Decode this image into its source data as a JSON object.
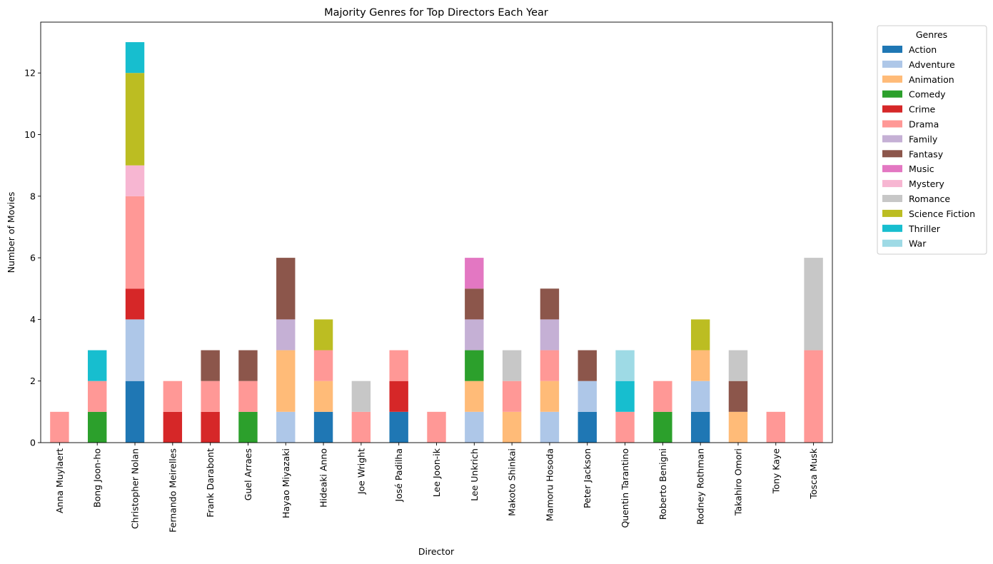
{
  "chart_data": {
    "type": "bar",
    "stacked": true,
    "title": "Majority Genres for Top Directors Each Year",
    "xlabel": "Director",
    "ylabel": "Number of Movies",
    "ylim": [
      0,
      13.65
    ],
    "yticks": [
      0,
      2,
      4,
      6,
      8,
      10,
      12
    ],
    "grid": false,
    "legend": {
      "title": "Genres",
      "placement": "outside-top-right"
    },
    "categories": [
      "Anna Muylaert",
      "Bong Joon-ho",
      "Christopher Nolan",
      "Fernando Meirelles",
      "Frank Darabont",
      "Guel Arraes",
      "Hayao Miyazaki",
      "Hideaki Anno",
      "Joe Wright",
      "José Padilha",
      "Lee Joon-ik",
      "Lee Unkrich",
      "Makoto Shinkai",
      "Mamoru Hosoda",
      "Peter Jackson",
      "Quentin Tarantino",
      "Roberto Benigni",
      "Rodney Rothman",
      "Takahiro Omori",
      "Tony Kaye",
      "Tosca Musk"
    ],
    "series": [
      {
        "name": "Action",
        "color": "#1f77b4",
        "values": [
          0,
          0,
          2,
          0,
          0,
          0,
          0,
          1,
          0,
          1,
          0,
          0,
          0,
          0,
          1,
          0,
          0,
          1,
          0,
          0,
          0
        ]
      },
      {
        "name": "Adventure",
        "color": "#aec7e8",
        "values": [
          0,
          0,
          2,
          0,
          0,
          0,
          1,
          0,
          0,
          0,
          0,
          1,
          0,
          1,
          1,
          0,
          0,
          1,
          0,
          0,
          0
        ]
      },
      {
        "name": "Animation",
        "color": "#ffbb78",
        "values": [
          0,
          0,
          0,
          0,
          0,
          0,
          2,
          1,
          0,
          0,
          0,
          1,
          1,
          1,
          0,
          0,
          0,
          1,
          1,
          0,
          0
        ]
      },
      {
        "name": "Comedy",
        "color": "#2ca02c",
        "values": [
          0,
          1,
          0,
          0,
          0,
          1,
          0,
          0,
          0,
          0,
          0,
          1,
          0,
          0,
          0,
          0,
          1,
          0,
          0,
          0,
          0
        ]
      },
      {
        "name": "Crime",
        "color": "#d62728",
        "values": [
          0,
          0,
          1,
          1,
          1,
          0,
          0,
          0,
          0,
          1,
          0,
          0,
          0,
          0,
          0,
          0,
          0,
          0,
          0,
          0,
          0
        ]
      },
      {
        "name": "Drama",
        "color": "#ff9896",
        "values": [
          1,
          1,
          3,
          1,
          1,
          1,
          0,
          1,
          1,
          1,
          1,
          0,
          1,
          1,
          0,
          1,
          1,
          0,
          0,
          1,
          3
        ]
      },
      {
        "name": "Family",
        "color": "#c5b0d5",
        "values": [
          0,
          0,
          0,
          0,
          0,
          0,
          1,
          0,
          0,
          0,
          0,
          1,
          0,
          1,
          0,
          0,
          0,
          0,
          0,
          0,
          0
        ]
      },
      {
        "name": "Fantasy",
        "color": "#8c564b",
        "values": [
          0,
          0,
          0,
          0,
          1,
          1,
          2,
          0,
          0,
          0,
          0,
          1,
          0,
          1,
          1,
          0,
          0,
          0,
          1,
          0,
          0
        ]
      },
      {
        "name": "Music",
        "color": "#e377c2",
        "values": [
          0,
          0,
          0,
          0,
          0,
          0,
          0,
          0,
          0,
          0,
          0,
          1,
          0,
          0,
          0,
          0,
          0,
          0,
          0,
          0,
          0
        ]
      },
      {
        "name": "Mystery",
        "color": "#f7b6d2",
        "values": [
          0,
          0,
          1,
          0,
          0,
          0,
          0,
          0,
          0,
          0,
          0,
          0,
          0,
          0,
          0,
          0,
          0,
          0,
          0,
          0,
          0
        ]
      },
      {
        "name": "Romance",
        "color": "#c7c7c7",
        "values": [
          0,
          0,
          0,
          0,
          0,
          0,
          0,
          0,
          1,
          0,
          0,
          0,
          1,
          0,
          0,
          0,
          0,
          0,
          1,
          0,
          3
        ]
      },
      {
        "name": "Science Fiction",
        "color": "#bcbd22",
        "values": [
          0,
          0,
          3,
          0,
          0,
          0,
          0,
          1,
          0,
          0,
          0,
          0,
          0,
          0,
          0,
          0,
          0,
          1,
          0,
          0,
          0
        ]
      },
      {
        "name": "Thriller",
        "color": "#17becf",
        "values": [
          0,
          1,
          1,
          0,
          0,
          0,
          0,
          0,
          0,
          0,
          0,
          0,
          0,
          0,
          0,
          1,
          0,
          0,
          0,
          0,
          0
        ]
      },
      {
        "name": "War",
        "color": "#9edae5",
        "values": [
          0,
          0,
          0,
          0,
          0,
          0,
          0,
          0,
          0,
          0,
          0,
          0,
          0,
          0,
          0,
          1,
          0,
          0,
          0,
          0,
          0
        ]
      }
    ]
  }
}
